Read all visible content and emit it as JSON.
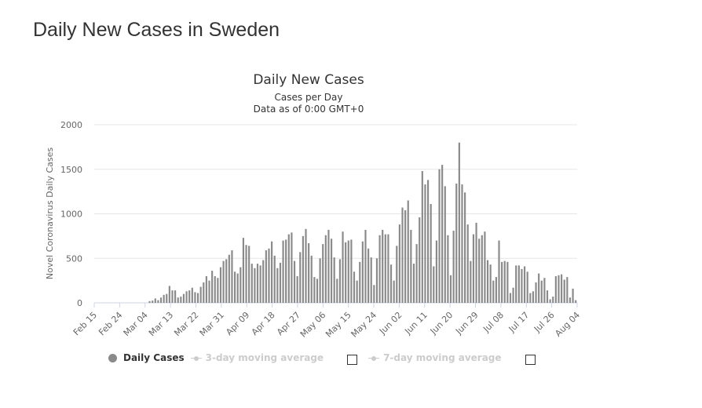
{
  "page": {
    "title": "Daily New Cases in Sweden"
  },
  "legend": {
    "daily_cases": "Daily Cases",
    "ma3": "3-day moving average",
    "ma7": "7-day moving average"
  },
  "colors": {
    "bar": "#8a8a8a",
    "grid": "#e6e6e6",
    "axis_text": "#666666",
    "hidden_series": "#cccccc"
  },
  "chart_data": {
    "type": "bar",
    "title": "Daily New Cases",
    "subtitle": [
      "Cases per Day",
      "Data as of 0:00 GMT+0"
    ],
    "xlabel": "",
    "ylabel": "Novel Coronavirus Daily Cases",
    "ylim": [
      0,
      2000
    ],
    "yticks": [
      0,
      500,
      1000,
      1500,
      2000
    ],
    "grid": true,
    "x_tick_labels": [
      "Feb 15",
      "Feb 24",
      "Mar 04",
      "Mar 13",
      "Mar 22",
      "Mar 31",
      "Apr 09",
      "Apr 18",
      "Apr 27",
      "May 06",
      "May 15",
      "May 24",
      "Jun 02",
      "Jun 11",
      "Jun 20",
      "Jun 29",
      "Jul 08",
      "Jul 17",
      "Jul 26",
      "Aug 04"
    ],
    "x_start": "Feb 15",
    "x_end": "Aug 04",
    "series": [
      {
        "name": "Daily Cases",
        "values": [
          0,
          0,
          0,
          0,
          0,
          0,
          0,
          0,
          0,
          0,
          0,
          0,
          0,
          0,
          0,
          0,
          0,
          0,
          0,
          20,
          25,
          50,
          30,
          60,
          90,
          100,
          190,
          140,
          140,
          60,
          70,
          100,
          130,
          140,
          170,
          120,
          110,
          180,
          230,
          300,
          250,
          360,
          300,
          280,
          400,
          470,
          490,
          540,
          590,
          350,
          330,
          400,
          730,
          650,
          640,
          440,
          390,
          440,
          420,
          480,
          590,
          610,
          690,
          530,
          390,
          450,
          700,
          710,
          770,
          790,
          470,
          300,
          570,
          750,
          830,
          670,
          530,
          290,
          270,
          500,
          660,
          760,
          820,
          720,
          510,
          270,
          490,
          800,
          680,
          700,
          710,
          350,
          250,
          460,
          690,
          820,
          610,
          510,
          200,
          500,
          760,
          820,
          770,
          770,
          430,
          250,
          640,
          880,
          1070,
          1040,
          1150,
          820,
          440,
          660,
          960,
          1480,
          1330,
          1380,
          1110,
          410,
          700,
          1500,
          1550,
          1310,
          760,
          310,
          810,
          1340,
          1800,
          1330,
          1240,
          880,
          470,
          770,
          900,
          720,
          760,
          800,
          480,
          430,
          250,
          290,
          700,
          460,
          470,
          460,
          110,
          170,
          420,
          420,
          380,
          410,
          350,
          110,
          130,
          230,
          330,
          250,
          280,
          140,
          40,
          70,
          300,
          310,
          320,
          260,
          290,
          60,
          160,
          30
        ]
      },
      {
        "name": "3-day moving average",
        "visible": false
      },
      {
        "name": "7-day moving average",
        "visible": false
      }
    ]
  }
}
